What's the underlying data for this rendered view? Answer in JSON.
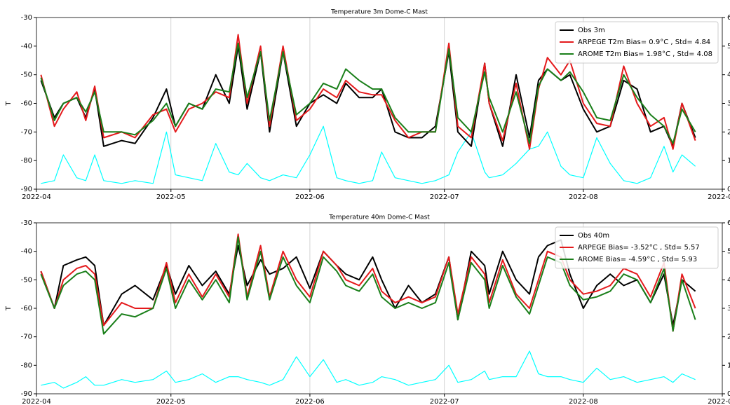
{
  "chart_data": [
    {
      "type": "line",
      "title": "Temperature 3m Dome-C Mast",
      "y_label": "T",
      "grid": "x",
      "legend": "upper right",
      "xlim": [
        0,
        153
      ],
      "xticks": [
        {
          "value": 0,
          "label": "2022-04"
        },
        {
          "value": 30,
          "label": "2022-05"
        },
        {
          "value": 61,
          "label": "2022-06"
        },
        {
          "value": 91,
          "label": "2022-07"
        },
        {
          "value": 122,
          "label": "2022-08"
        },
        {
          "value": 153,
          "label": "2022-09"
        }
      ],
      "ylim": [
        -90,
        -30
      ],
      "yticks": [
        -90,
        -80,
        -70,
        -60,
        -50,
        -40,
        -30
      ],
      "y2lim": [
        0,
        6
      ],
      "y2ticks": [
        0,
        1,
        2,
        3,
        4,
        5,
        6
      ],
      "x": [
        1,
        4,
        6,
        9,
        11,
        13,
        15,
        19,
        22,
        26,
        29,
        31,
        34,
        37,
        40,
        43,
        45,
        47,
        50,
        52,
        55,
        58,
        61,
        64,
        67,
        69,
        72,
        75,
        77,
        80,
        83,
        86,
        89,
        92,
        94,
        97,
        100,
        101,
        104,
        107,
        110,
        112,
        114,
        117,
        119,
        122,
        125,
        128,
        131,
        134,
        137,
        140,
        142,
        144,
        147
      ],
      "series": [
        {
          "name": "Obs 3m",
          "color": "#000000",
          "values": [
            -52,
            -65,
            -60,
            -58,
            -65,
            -55,
            -75,
            -73,
            -74,
            -65,
            -55,
            -68,
            -60,
            -62,
            -50,
            -60,
            -40,
            -62,
            -42,
            -70,
            -42,
            -68,
            -60,
            -57,
            -60,
            -53,
            -58,
            -58,
            -55,
            -70,
            -72,
            -72,
            -68,
            -42,
            -70,
            -75,
            -46,
            -60,
            -75,
            -50,
            -72,
            -52,
            -48,
            -52,
            -50,
            -62,
            -70,
            -68,
            -52,
            -55,
            -70,
            -68,
            -75,
            -60,
            -72
          ]
        },
        {
          "name": "ARPEGE T2m Bias= 0.9°C , Std= 4.84",
          "color": "#e41a1c",
          "values": [
            -50,
            -68,
            -62,
            -56,
            -66,
            -54,
            -72,
            -70,
            -72,
            -64,
            -62,
            -70,
            -62,
            -60,
            -56,
            -58,
            -36,
            -60,
            -40,
            -68,
            -40,
            -66,
            -62,
            -55,
            -58,
            -52,
            -56,
            -57,
            -57,
            -66,
            -72,
            -70,
            -70,
            -39,
            -68,
            -72,
            -46,
            -60,
            -73,
            -53,
            -76,
            -55,
            -44,
            -50,
            -45,
            -60,
            -67,
            -68,
            -47,
            -60,
            -68,
            -65,
            -76,
            -60,
            -73
          ]
        },
        {
          "name": "AROME T2m Bias= 1.98°C , Std= 4.08",
          "color": "#1a7f1a",
          "values": [
            -51,
            -66,
            -60,
            -58,
            -63,
            -56,
            -70,
            -70,
            -71,
            -66,
            -60,
            -68,
            -60,
            -62,
            -55,
            -56,
            -39,
            -58,
            -42,
            -66,
            -42,
            -64,
            -60,
            -53,
            -55,
            -48,
            -52,
            -55,
            -55,
            -65,
            -70,
            -70,
            -70,
            -41,
            -65,
            -70,
            -49,
            -58,
            -70,
            -56,
            -74,
            -54,
            -48,
            -52,
            -49,
            -56,
            -65,
            -66,
            -50,
            -58,
            -64,
            -68,
            -74,
            -62,
            -70
          ]
        },
        {
          "color": "#00ffff",
          "axis": "y2",
          "values": [
            0.2,
            0.3,
            1.2,
            0.4,
            0.3,
            1.2,
            0.3,
            0.2,
            0.3,
            0.2,
            2.0,
            0.5,
            0.4,
            0.3,
            1.6,
            0.6,
            0.5,
            0.9,
            0.4,
            0.3,
            0.5,
            0.4,
            1.2,
            2.2,
            0.4,
            0.3,
            0.2,
            0.3,
            1.3,
            0.4,
            0.3,
            0.2,
            0.3,
            0.5,
            1.3,
            2.0,
            0.6,
            0.4,
            0.5,
            0.9,
            1.4,
            1.5,
            2.0,
            0.8,
            0.5,
            0.4,
            1.8,
            0.9,
            0.3,
            0.2,
            0.4,
            1.5,
            0.6,
            1.2,
            0.8
          ]
        }
      ]
    },
    {
      "type": "line",
      "title": "Temperature 40m Dome-C Mast",
      "y_label": "T",
      "grid": "x",
      "legend": "upper right",
      "xlim": [
        0,
        153
      ],
      "xticks": [
        {
          "value": 0,
          "label": "2022-04"
        },
        {
          "value": 30,
          "label": "2022-05"
        },
        {
          "value": 61,
          "label": "2022-06"
        },
        {
          "value": 91,
          "label": "2022-07"
        },
        {
          "value": 122,
          "label": "2022-08"
        },
        {
          "value": 153,
          "label": "2022-09"
        }
      ],
      "ylim": [
        -90,
        -30
      ],
      "yticks": [
        -90,
        -80,
        -70,
        -60,
        -50,
        -40,
        -30
      ],
      "y2lim": [
        0,
        6
      ],
      "y2ticks": [
        0,
        1,
        2,
        3,
        4,
        5,
        6
      ],
      "x": [
        1,
        4,
        6,
        9,
        11,
        13,
        15,
        19,
        22,
        26,
        29,
        31,
        34,
        37,
        40,
        43,
        45,
        47,
        50,
        52,
        55,
        58,
        61,
        64,
        67,
        69,
        72,
        75,
        77,
        80,
        83,
        86,
        89,
        92,
        94,
        97,
        100,
        101,
        104,
        107,
        110,
        112,
        114,
        117,
        119,
        122,
        125,
        128,
        131,
        134,
        137,
        140,
        142,
        144,
        147
      ],
      "series": [
        {
          "name": "Obs 40m",
          "color": "#000000",
          "values": [
            -47,
            -60,
            -45,
            -43,
            -42,
            -45,
            -66,
            -55,
            -52,
            -57,
            -45,
            -55,
            -45,
            -52,
            -47,
            -55,
            -38,
            -52,
            -43,
            -48,
            -46,
            -42,
            -53,
            -40,
            -45,
            -48,
            -50,
            -42,
            -50,
            -60,
            -52,
            -58,
            -55,
            -42,
            -64,
            -40,
            -45,
            -55,
            -40,
            -50,
            -55,
            -42,
            -38,
            -36,
            -48,
            -60,
            -52,
            -48,
            -52,
            -50,
            -58,
            -48,
            -66,
            -50,
            -54
          ]
        },
        {
          "name": "ARPEGE Bias= -3.52°C , Std= 5.57",
          "color": "#e41a1c",
          "values": [
            -47,
            -60,
            -50,
            -46,
            -45,
            -48,
            -66,
            -58,
            -60,
            -60,
            -44,
            -58,
            -48,
            -56,
            -48,
            -56,
            -34,
            -56,
            -38,
            -56,
            -40,
            -50,
            -56,
            -40,
            -45,
            -50,
            -52,
            -46,
            -54,
            -58,
            -56,
            -58,
            -56,
            -42,
            -62,
            -42,
            -48,
            -58,
            -43,
            -55,
            -60,
            -50,
            -40,
            -42,
            -50,
            -55,
            -54,
            -52,
            -46,
            -48,
            -56,
            -44,
            -68,
            -48,
            -60
          ]
        },
        {
          "name": "AROME Bias= -4.59°C , Std= 5.93",
          "color": "#1a7f1a",
          "values": [
            -48,
            -60,
            -52,
            -48,
            -47,
            -50,
            -69,
            -62,
            -63,
            -60,
            -46,
            -60,
            -50,
            -57,
            -50,
            -58,
            -35,
            -57,
            -40,
            -57,
            -42,
            -52,
            -58,
            -42,
            -47,
            -52,
            -54,
            -48,
            -56,
            -60,
            -58,
            -60,
            -58,
            -44,
            -64,
            -44,
            -50,
            -60,
            -45,
            -56,
            -62,
            -52,
            -42,
            -44,
            -52,
            -57,
            -56,
            -54,
            -48,
            -50,
            -58,
            -46,
            -68,
            -50,
            -64
          ]
        },
        {
          "color": "#00ffff",
          "axis": "y2",
          "values": [
            0.3,
            0.4,
            0.2,
            0.4,
            0.6,
            0.3,
            0.3,
            0.5,
            0.4,
            0.5,
            0.8,
            0.4,
            0.5,
            0.7,
            0.4,
            0.6,
            0.6,
            0.5,
            0.4,
            0.3,
            0.5,
            1.3,
            0.6,
            1.2,
            0.4,
            0.5,
            0.3,
            0.4,
            0.6,
            0.5,
            0.3,
            0.4,
            0.5,
            1.0,
            0.4,
            0.5,
            0.8,
            0.5,
            0.6,
            0.6,
            1.5,
            0.7,
            0.6,
            0.6,
            0.5,
            0.4,
            0.9,
            0.5,
            0.6,
            0.4,
            0.5,
            0.6,
            0.4,
            0.7,
            0.5
          ]
        }
      ]
    }
  ]
}
